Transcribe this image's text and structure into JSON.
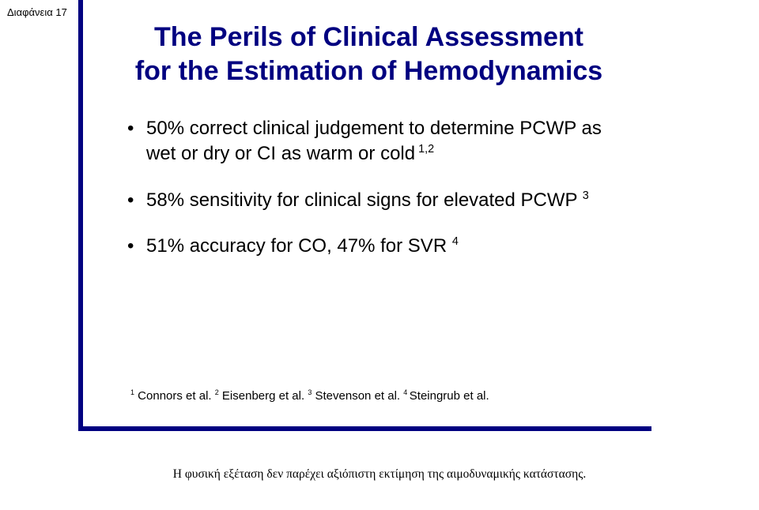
{
  "page_label": "Διαφάνεια 17",
  "slide": {
    "title_line1": "The Perils of Clinical Assessment",
    "title_line2": "for the Estimation of Hemodynamics",
    "bullets": {
      "b1_text": "50% correct clinical judgement to determine PCWP as wet or dry or CI as warm or cold",
      "b1_sup": "1,2",
      "b2_text": "58% sensitivity for clinical signs for elevated PCWP",
      "b2_sup": "3",
      "b3_text": "51% accuracy for CO, 47% for SVR",
      "b3_sup": "4"
    },
    "refs": {
      "r1_sup": "1",
      "r1_text": " Connors et al. ",
      "r2_sup": "2",
      "r2_text": " Eisenberg et al. ",
      "r3_sup": "3",
      "r3_text": " Stevenson et al. ",
      "r4_sup": "4 ",
      "r4_text": "Steingrub et al."
    }
  },
  "caption": "Η φυσική εξέταση δεν παρέχει αξιόπιστη εκτίμηση της αιμοδυναμικής κατάστασης.",
  "colors": {
    "accent": "#000080",
    "text": "#000000",
    "background": "#ffffff"
  }
}
